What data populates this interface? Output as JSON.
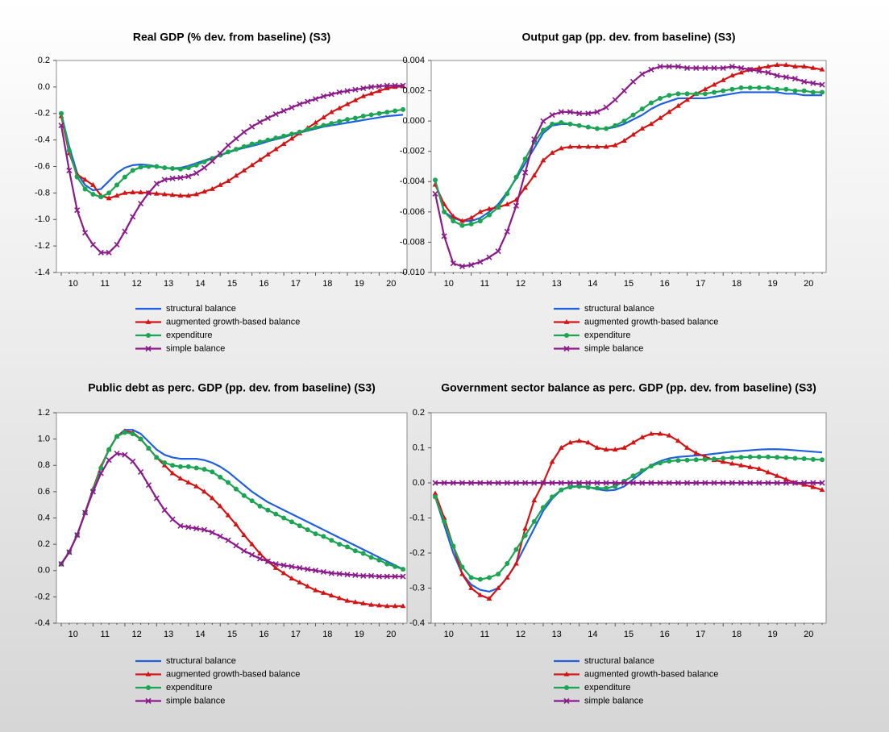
{
  "chart_data": [
    {
      "type": "line",
      "title": "Real GDP (% dev. from baseline) (S3)",
      "categories": [
        null,
        "10",
        null,
        null,
        null,
        "11",
        null,
        null,
        null,
        "12",
        null,
        null,
        null,
        "13",
        null,
        null,
        null,
        "14",
        null,
        null,
        null,
        "15",
        null,
        null,
        null,
        "16",
        null,
        null,
        null,
        "17",
        null,
        null,
        null,
        "18",
        null,
        null,
        null,
        "19",
        null,
        null,
        null,
        "20",
        null,
        null
      ],
      "ylim": [
        -1.4,
        0.2
      ],
      "yticks": [
        -1.4,
        -1.2,
        {
          "value": -1,
          "label": "-1.0"
        },
        -0.8,
        -0.6,
        -0.4,
        -0.2,
        {
          "value": 0,
          "label": "0.0"
        },
        0.2
      ],
      "series": [
        {
          "name": "structural balance",
          "color": "#1f5fe0",
          "marker": "none",
          "values": [
            -0.2,
            -0.45,
            -0.65,
            -0.74,
            -0.78,
            -0.77,
            -0.71,
            -0.65,
            -0.61,
            -0.59,
            -0.585,
            -0.59,
            -0.6,
            -0.61,
            -0.615,
            -0.61,
            -0.595,
            -0.575,
            -0.555,
            -0.535,
            -0.515,
            -0.495,
            -0.475,
            -0.46,
            -0.445,
            -0.43,
            -0.41,
            -0.395,
            -0.38,
            -0.36,
            -0.345,
            -0.33,
            -0.315,
            -0.3,
            -0.29,
            -0.28,
            -0.27,
            -0.26,
            -0.25,
            -0.24,
            -0.23,
            -0.22,
            -0.215,
            -0.21
          ]
        },
        {
          "name": "augmented growth-based balance",
          "color": "#d41414",
          "marker": "triangle",
          "values": [
            -0.22,
            -0.5,
            -0.66,
            -0.7,
            -0.74,
            -0.82,
            -0.84,
            -0.82,
            -0.8,
            -0.795,
            -0.795,
            -0.8,
            -0.805,
            -0.81,
            -0.815,
            -0.82,
            -0.82,
            -0.81,
            -0.79,
            -0.77,
            -0.74,
            -0.71,
            -0.67,
            -0.63,
            -0.59,
            -0.55,
            -0.51,
            -0.47,
            -0.43,
            -0.39,
            -0.35,
            -0.31,
            -0.27,
            -0.23,
            -0.19,
            -0.16,
            -0.13,
            -0.1,
            -0.07,
            -0.05,
            -0.03,
            -0.01,
            0.0,
            0.005
          ]
        },
        {
          "name": "expenditure",
          "color": "#1ba553",
          "marker": "circle",
          "values": [
            -0.2,
            -0.48,
            -0.68,
            -0.77,
            -0.81,
            -0.83,
            -0.8,
            -0.74,
            -0.68,
            -0.63,
            -0.605,
            -0.6,
            -0.6,
            -0.61,
            -0.615,
            -0.62,
            -0.61,
            -0.59,
            -0.565,
            -0.54,
            -0.515,
            -0.49,
            -0.47,
            -0.45,
            -0.43,
            -0.415,
            -0.4,
            -0.385,
            -0.37,
            -0.355,
            -0.34,
            -0.32,
            -0.305,
            -0.29,
            -0.275,
            -0.26,
            -0.245,
            -0.235,
            -0.22,
            -0.21,
            -0.2,
            -0.19,
            -0.18,
            -0.17
          ]
        },
        {
          "name": "simple balance",
          "color": "#8b1a8b",
          "marker": "x",
          "values": [
            -0.29,
            -0.63,
            -0.93,
            -1.1,
            -1.19,
            -1.25,
            -1.25,
            -1.19,
            -1.09,
            -0.98,
            -0.88,
            -0.8,
            -0.73,
            -0.7,
            -0.69,
            -0.685,
            -0.675,
            -0.65,
            -0.61,
            -0.56,
            -0.5,
            -0.44,
            -0.39,
            -0.34,
            -0.3,
            -0.265,
            -0.235,
            -0.205,
            -0.18,
            -0.155,
            -0.13,
            -0.11,
            -0.09,
            -0.07,
            -0.055,
            -0.04,
            -0.03,
            -0.02,
            -0.01,
            0.0,
            0.005,
            0.01,
            0.01,
            0.01
          ]
        }
      ]
    },
    {
      "type": "line",
      "title": "Output gap (pp. dev. from baseline) (S3)",
      "categories": [
        null,
        "10",
        null,
        null,
        null,
        "11",
        null,
        null,
        null,
        "12",
        null,
        null,
        null,
        "13",
        null,
        null,
        null,
        "14",
        null,
        null,
        null,
        "15",
        null,
        null,
        null,
        "16",
        null,
        null,
        null,
        "17",
        null,
        null,
        null,
        "18",
        null,
        null,
        null,
        "19",
        null,
        null,
        null,
        "20",
        null,
        null
      ],
      "ylim": [
        -0.01,
        0.004
      ],
      "yticks": [
        {
          "value": -0.01,
          "label": "-0.010"
        },
        -0.008,
        -0.006,
        -0.004,
        -0.002,
        {
          "value": 0,
          "label": "0.000"
        },
        0.002,
        0.004
      ],
      "series": [
        {
          "name": "structural balance",
          "color": "#1f5fe0",
          "marker": "none",
          "values": [
            -0.004,
            -0.006,
            -0.0064,
            -0.0066,
            -0.0066,
            -0.0064,
            -0.006,
            -0.0055,
            -0.0047,
            -0.0038,
            -0.0028,
            -0.0018,
            -0.0008,
            -0.0003,
            -0.0002,
            -0.0002,
            -0.0003,
            -0.0004,
            -0.0005,
            -0.0005,
            -0.0004,
            -0.0002,
            0.0001,
            0.0004,
            0.0008,
            0.0011,
            0.0013,
            0.0015,
            0.0015,
            0.0015,
            0.0015,
            0.0016,
            0.0017,
            0.0018,
            0.0019,
            0.0019,
            0.0019,
            0.0019,
            0.0019,
            0.0018,
            0.0018,
            0.0017,
            0.0017,
            0.0017
          ]
        },
        {
          "name": "augmented growth-based balance",
          "color": "#d41414",
          "marker": "triangle",
          "values": [
            -0.0042,
            -0.0055,
            -0.0063,
            -0.0066,
            -0.0064,
            -0.006,
            -0.0058,
            -0.0057,
            -0.0055,
            -0.0052,
            -0.0044,
            -0.0036,
            -0.0026,
            -0.0021,
            -0.0018,
            -0.0017,
            -0.0017,
            -0.0017,
            -0.0017,
            -0.0017,
            -0.0016,
            -0.0013,
            -0.0009,
            -0.0005,
            -0.0002,
            0.0002,
            0.0006,
            0.001,
            0.0014,
            0.0018,
            0.0021,
            0.0024,
            0.0027,
            0.003,
            0.0032,
            0.0034,
            0.0035,
            0.0036,
            0.0037,
            0.0037,
            0.0036,
            0.0036,
            0.0035,
            0.0034
          ]
        },
        {
          "name": "expenditure",
          "color": "#1ba553",
          "marker": "circle",
          "values": [
            -0.0039,
            -0.006,
            -0.0066,
            -0.0069,
            -0.0068,
            -0.0066,
            -0.0062,
            -0.0057,
            -0.0048,
            -0.0037,
            -0.0025,
            -0.0014,
            -0.0006,
            -0.0002,
            -0.0001,
            -0.0002,
            -0.0003,
            -0.0004,
            -0.0005,
            -0.0005,
            -0.0003,
            0.0,
            0.0004,
            0.0008,
            0.0012,
            0.0015,
            0.0017,
            0.0018,
            0.0018,
            0.0018,
            0.0018,
            0.0019,
            0.002,
            0.0021,
            0.0022,
            0.0022,
            0.0022,
            0.0022,
            0.0021,
            0.0021,
            0.002,
            0.002,
            0.0019,
            0.0019
          ]
        },
        {
          "name": "simple balance",
          "color": "#8b1a8b",
          "marker": "x",
          "values": [
            -0.0048,
            -0.0076,
            -0.0094,
            -0.0096,
            -0.0095,
            -0.0093,
            -0.009,
            -0.0086,
            -0.0073,
            -0.0056,
            -0.0034,
            -0.0012,
            0.0,
            0.0004,
            0.0006,
            0.0006,
            0.0005,
            0.0005,
            0.0006,
            0.0009,
            0.0014,
            0.002,
            0.0026,
            0.0031,
            0.0034,
            0.0036,
            0.0036,
            0.0036,
            0.0035,
            0.0035,
            0.0035,
            0.0035,
            0.0035,
            0.0036,
            0.0035,
            0.0034,
            0.0033,
            0.0032,
            0.003,
            0.0029,
            0.0028,
            0.0026,
            0.0025,
            0.0024
          ]
        }
      ]
    },
    {
      "type": "line",
      "title": "Public debt as perc. GDP (pp. dev. from baseline) (S3)",
      "categories": [
        null,
        "10",
        null,
        null,
        null,
        "11",
        null,
        null,
        null,
        "12",
        null,
        null,
        null,
        "13",
        null,
        null,
        null,
        "14",
        null,
        null,
        null,
        "15",
        null,
        null,
        null,
        "16",
        null,
        null,
        null,
        "17",
        null,
        null,
        null,
        "18",
        null,
        null,
        null,
        "19",
        null,
        null,
        null,
        "20",
        null,
        null
      ],
      "ylim": [
        -0.4,
        1.2
      ],
      "yticks": [
        -0.4,
        -0.2,
        {
          "value": 0,
          "label": "0.0"
        },
        0.2,
        0.4,
        0.6,
        0.8,
        {
          "value": 1,
          "label": "1.0"
        },
        1.2
      ],
      "series": [
        {
          "name": "structural balance",
          "color": "#1f5fe0",
          "marker": "none",
          "values": [
            0.05,
            0.14,
            0.27,
            0.44,
            0.62,
            0.79,
            0.92,
            1.02,
            1.07,
            1.07,
            1.04,
            0.98,
            0.92,
            0.88,
            0.86,
            0.85,
            0.85,
            0.85,
            0.84,
            0.82,
            0.79,
            0.75,
            0.7,
            0.65,
            0.6,
            0.56,
            0.52,
            0.49,
            0.46,
            0.43,
            0.4,
            0.37,
            0.34,
            0.31,
            0.28,
            0.25,
            0.22,
            0.19,
            0.16,
            0.13,
            0.1,
            0.07,
            0.04,
            0.01
          ]
        },
        {
          "name": "augmented growth-based balance",
          "color": "#d41414",
          "marker": "triangle",
          "values": [
            0.05,
            0.14,
            0.27,
            0.44,
            0.62,
            0.79,
            0.92,
            1.02,
            1.06,
            1.05,
            1.0,
            0.93,
            0.86,
            0.8,
            0.74,
            0.7,
            0.67,
            0.64,
            0.6,
            0.55,
            0.49,
            0.42,
            0.35,
            0.27,
            0.2,
            0.13,
            0.07,
            0.02,
            -0.02,
            -0.06,
            -0.09,
            -0.12,
            -0.15,
            -0.17,
            -0.19,
            -0.21,
            -0.23,
            -0.24,
            -0.25,
            -0.26,
            -0.265,
            -0.27,
            -0.27,
            -0.27
          ]
        },
        {
          "name": "expenditure",
          "color": "#1ba553",
          "marker": "circle",
          "values": [
            0.05,
            0.14,
            0.27,
            0.44,
            0.61,
            0.78,
            0.92,
            1.02,
            1.05,
            1.04,
            1.0,
            0.93,
            0.86,
            0.82,
            0.8,
            0.79,
            0.79,
            0.78,
            0.77,
            0.75,
            0.71,
            0.67,
            0.62,
            0.57,
            0.53,
            0.49,
            0.46,
            0.43,
            0.4,
            0.37,
            0.34,
            0.31,
            0.28,
            0.26,
            0.23,
            0.2,
            0.18,
            0.15,
            0.13,
            0.1,
            0.08,
            0.05,
            0.03,
            0.01
          ]
        },
        {
          "name": "simple balance",
          "color": "#8b1a8b",
          "marker": "x",
          "values": [
            0.05,
            0.14,
            0.27,
            0.44,
            0.6,
            0.74,
            0.84,
            0.89,
            0.88,
            0.83,
            0.75,
            0.65,
            0.55,
            0.46,
            0.39,
            0.34,
            0.33,
            0.32,
            0.31,
            0.29,
            0.26,
            0.23,
            0.19,
            0.15,
            0.12,
            0.09,
            0.07,
            0.05,
            0.04,
            0.03,
            0.02,
            0.01,
            0.0,
            -0.01,
            -0.02,
            -0.025,
            -0.03,
            -0.035,
            -0.04,
            -0.04,
            -0.045,
            -0.045,
            -0.045,
            -0.045
          ]
        }
      ]
    },
    {
      "type": "line",
      "title": "Government sector balance as perc. GDP (pp. dev. from baseline) (S3)",
      "categories": [
        null,
        "10",
        null,
        null,
        null,
        "11",
        null,
        null,
        null,
        "12",
        null,
        null,
        null,
        "13",
        null,
        null,
        null,
        "14",
        null,
        null,
        null,
        "15",
        null,
        null,
        null,
        "16",
        null,
        null,
        null,
        "17",
        null,
        null,
        null,
        "18",
        null,
        null,
        null,
        "19",
        null,
        null,
        null,
        "20",
        null,
        null
      ],
      "ylim": [
        -0.4,
        0.2
      ],
      "yticks": [
        -0.4,
        -0.3,
        -0.2,
        -0.1,
        {
          "value": 0,
          "label": "0.0"
        },
        0.1,
        0.2
      ],
      "series": [
        {
          "name": "structural balance",
          "color": "#1f5fe0",
          "marker": "none",
          "values": [
            -0.04,
            -0.12,
            -0.2,
            -0.26,
            -0.29,
            -0.305,
            -0.31,
            -0.3,
            -0.27,
            -0.23,
            -0.18,
            -0.13,
            -0.08,
            -0.045,
            -0.02,
            -0.01,
            -0.01,
            -0.012,
            -0.018,
            -0.022,
            -0.02,
            -0.01,
            0.01,
            0.03,
            0.05,
            0.062,
            0.07,
            0.074,
            0.076,
            0.078,
            0.08,
            0.083,
            0.086,
            0.089,
            0.091,
            0.093,
            0.095,
            0.096,
            0.096,
            0.095,
            0.093,
            0.091,
            0.089,
            0.087
          ]
        },
        {
          "name": "augmented growth-based balance",
          "color": "#d41414",
          "marker": "triangle",
          "values": [
            -0.03,
            -0.1,
            -0.18,
            -0.26,
            -0.3,
            -0.32,
            -0.33,
            -0.3,
            -0.27,
            -0.23,
            -0.13,
            -0.05,
            0.0,
            0.06,
            0.1,
            0.115,
            0.12,
            0.115,
            0.1,
            0.095,
            0.095,
            0.1,
            0.115,
            0.13,
            0.14,
            0.14,
            0.135,
            0.12,
            0.1,
            0.085,
            0.075,
            0.065,
            0.06,
            0.055,
            0.05,
            0.045,
            0.04,
            0.03,
            0.02,
            0.01,
            0.0,
            -0.005,
            -0.012,
            -0.02
          ]
        },
        {
          "name": "expenditure",
          "color": "#1ba553",
          "marker": "circle",
          "values": [
            -0.04,
            -0.11,
            -0.18,
            -0.24,
            -0.27,
            -0.275,
            -0.27,
            -0.26,
            -0.23,
            -0.19,
            -0.15,
            -0.11,
            -0.07,
            -0.04,
            -0.02,
            -0.012,
            -0.01,
            -0.013,
            -0.015,
            -0.015,
            -0.01,
            0.005,
            0.02,
            0.035,
            0.048,
            0.057,
            0.062,
            0.064,
            0.065,
            0.066,
            0.067,
            0.068,
            0.07,
            0.072,
            0.073,
            0.074,
            0.074,
            0.074,
            0.073,
            0.072,
            0.07,
            0.069,
            0.067,
            0.066
          ]
        },
        {
          "name": "simple balance",
          "color": "#8b1a8b",
          "marker": "x",
          "values": [
            0,
            0,
            0,
            0,
            0,
            0,
            0,
            0,
            0,
            0,
            0,
            0,
            0,
            0,
            0,
            0,
            0,
            0,
            0,
            0,
            0,
            0,
            0,
            0,
            0,
            0,
            0,
            0,
            0,
            0,
            0,
            0,
            0,
            0,
            0,
            0,
            0,
            0,
            0,
            0,
            0,
            0,
            0,
            0
          ]
        }
      ]
    }
  ]
}
